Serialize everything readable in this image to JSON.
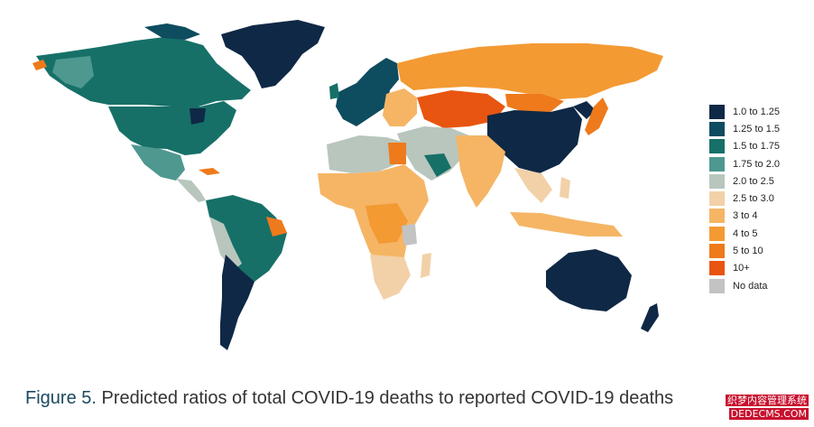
{
  "caption": {
    "label": "Figure 5.",
    "text": "Predicted ratios of total COVID-19 deaths to reported COVID-19 deaths"
  },
  "legend": {
    "items": [
      {
        "label": "1.0 to 1.25",
        "color": "#0f2846"
      },
      {
        "label": "1.25 to 1.5",
        "color": "#0e4c5f"
      },
      {
        "label": "1.5 to 1.75",
        "color": "#167068"
      },
      {
        "label": "1.75 to 2.0",
        "color": "#4e9890"
      },
      {
        "label": "2.0 to 2.5",
        "color": "#b8c6bd"
      },
      {
        "label": "2.5 to 3.0",
        "color": "#f2d1a8"
      },
      {
        "label": "3 to 4",
        "color": "#f5b565"
      },
      {
        "label": "4 to 5",
        "color": "#f39a33"
      },
      {
        "label": "5 to 10",
        "color": "#ee7a1c"
      },
      {
        "label": "10+",
        "color": "#e85510"
      },
      {
        "label": "No data",
        "color": "#c3c3c3"
      }
    ]
  },
  "map_regions": [
    {
      "name": "greenland",
      "category": "1.0 to 1.25"
    },
    {
      "name": "canada",
      "category": "1.5 to 1.75"
    },
    {
      "name": "usa",
      "category": "1.5 to 1.75"
    },
    {
      "name": "mexico",
      "category": "1.75 to 2.0"
    },
    {
      "name": "central-america",
      "category": "2.0 to 2.5"
    },
    {
      "name": "south-america-north",
      "category": "1.5 to 1.75"
    },
    {
      "name": "brazil",
      "category": "1.5 to 1.75"
    },
    {
      "name": "south-america-south",
      "category": "1.0 to 1.25"
    },
    {
      "name": "russia",
      "category": "4 to 5"
    },
    {
      "name": "europe",
      "category": "1.25 to 1.5"
    },
    {
      "name": "eastern-europe",
      "category": "3 to 4"
    },
    {
      "name": "central-asia",
      "category": "5 to 10"
    },
    {
      "name": "china",
      "category": "1.0 to 1.25"
    },
    {
      "name": "japan",
      "category": "5 to 10"
    },
    {
      "name": "middle-east",
      "category": "2.0 to 2.5"
    },
    {
      "name": "south-asia",
      "category": "3 to 4"
    },
    {
      "name": "southeast-asia",
      "category": "2.5 to 3.0"
    },
    {
      "name": "north-africa",
      "category": "2.0 to 2.5"
    },
    {
      "name": "sub-saharan-africa",
      "category": "3 to 4"
    },
    {
      "name": "southern-africa",
      "category": "2.5 to 3.0"
    },
    {
      "name": "australia",
      "category": "1.0 to 1.25"
    },
    {
      "name": "new-zealand",
      "category": "1.0 to 1.25"
    }
  ],
  "watermark": {
    "line1": "织梦内容管理系统",
    "line2": "DEDECMS.COM"
  }
}
